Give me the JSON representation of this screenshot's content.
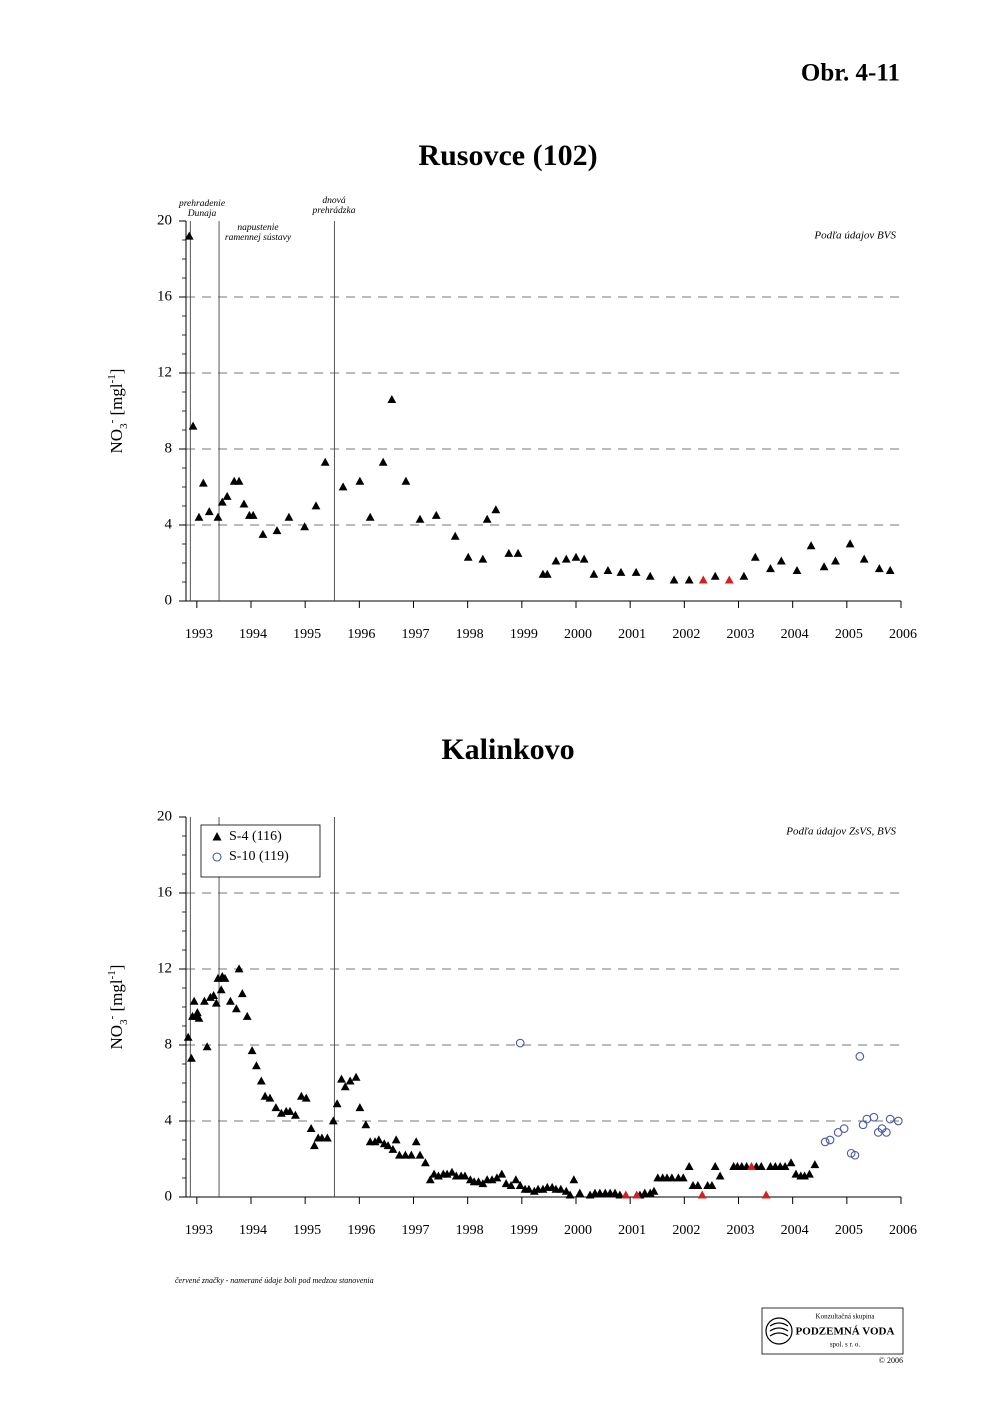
{
  "header": "Obr. 4-11",
  "chart_data": [
    {
      "type": "scatter",
      "title": "Rusovce (102)",
      "source": "Podľa údajov BVS",
      "ylabel": [
        "NO",
        "3",
        "-",
        " [mgl",
        "-1",
        "]"
      ],
      "xlim": [
        1992.8,
        2006
      ],
      "xticks": [
        1993,
        1994,
        1995,
        1996,
        1997,
        1998,
        1999,
        2000,
        2001,
        2002,
        2003,
        2004,
        2005,
        2006
      ],
      "ylim": [
        0,
        20
      ],
      "yticks": [
        0,
        4,
        8,
        12,
        16,
        20
      ],
      "grid": true,
      "vlines": [
        1992.88,
        1993.41,
        1995.54
      ],
      "vline_labels": [
        [
          "prehradenie",
          "Dunaja"
        ],
        [
          "napustenie",
          "ramennej sústavy"
        ],
        [
          "dnová",
          "prehrádzka"
        ]
      ],
      "series": [
        {
          "color": "#000000",
          "marker": "triangle",
          "x": [
            1992.86,
            1992.93,
            1993.04,
            1993.12,
            1993.23,
            1993.39,
            1993.47,
            1993.56,
            1993.69,
            1993.78,
            1993.87,
            1993.97,
            1994.04,
            1994.22,
            1994.48,
            1994.7,
            1994.99,
            1995.2,
            1995.37,
            1995.7,
            1996.01,
            1996.2,
            1996.44,
            1996.6,
            1996.86,
            1997.12,
            1997.42,
            1997.77,
            1998.01,
            1998.28,
            1998.36,
            1998.52,
            1998.76,
            1998.93,
            1999.39,
            1999.47,
            1999.63,
            1999.82,
            2000,
            2000.15,
            2000.33,
            2000.59,
            2000.83,
            2001.11,
            2001.37,
            2001.81,
            2002.09,
            2002.57,
            2003.1,
            2003.31,
            2003.59,
            2003.79,
            2004.08,
            2004.34,
            2004.58,
            2004.79,
            2005.06,
            2005.32,
            2005.6,
            2005.8
          ],
          "values": [
            19.2,
            9.2,
            4.4,
            6.2,
            4.7,
            4.4,
            5.2,
            5.5,
            6.3,
            6.3,
            5.1,
            4.5,
            4.5,
            3.5,
            3.7,
            4.4,
            3.9,
            5.0,
            7.3,
            6.0,
            6.3,
            4.4,
            7.3,
            10.6,
            6.3,
            4.3,
            4.5,
            3.4,
            2.3,
            2.2,
            4.3,
            4.8,
            2.5,
            2.5,
            1.4,
            1.4,
            2.1,
            2.2,
            2.3,
            2.2,
            1.4,
            1.6,
            1.5,
            1.5,
            1.3,
            1.1,
            1.1,
            1.3,
            1.3,
            2.3,
            1.7,
            2.1,
            1.6,
            2.9,
            1.8,
            2.1,
            3.0,
            2.2,
            1.7,
            1.6
          ]
        },
        {
          "color": "#d42020",
          "marker": "triangle",
          "x": [
            2002.35,
            2002.83
          ],
          "values": [
            1.1,
            1.1
          ]
        }
      ]
    },
    {
      "type": "scatter",
      "title": "Kalinkovo",
      "source": "Podľa údajov ZsVS, BVS",
      "ylabel": [
        "NO",
        "3",
        "-",
        " [mgl",
        "-1",
        "]"
      ],
      "xlim": [
        1992.8,
        2006
      ],
      "xticks": [
        1993,
        1994,
        1995,
        1996,
        1997,
        1998,
        1999,
        2000,
        2001,
        2002,
        2003,
        2004,
        2005,
        2006
      ],
      "ylim": [
        0,
        20
      ],
      "yticks": [
        0,
        4,
        8,
        12,
        16,
        20
      ],
      "grid": true,
      "vlines": [
        1992.88,
        1993.41,
        1995.54
      ],
      "legend": "upper left",
      "series": [
        {
          "name": "S-4 (116)",
          "color": "#000000",
          "marker": "triangle",
          "x": [
            1992.84,
            1992.9,
            1992.92,
            1992.95,
            1992.99,
            1993.01,
            1993.04,
            1993.14,
            1993.19,
            1993.25,
            1993.31,
            1993.36,
            1993.39,
            1993.45,
            1993.47,
            1993.52,
            1993.62,
            1993.73,
            1993.78,
            1993.84,
            1993.93,
            1994.02,
            1994.1,
            1994.19,
            1994.26,
            1994.35,
            1994.46,
            1994.56,
            1994.65,
            1994.72,
            1994.82,
            1994.93,
            1995.02,
            1995.11,
            1995.17,
            1995.24,
            1995.31,
            1995.41,
            1995.52,
            1995.59,
            1995.67,
            1995.74,
            1995.83,
            1995.94,
            1996.01,
            1996.12,
            1996.2,
            1996.29,
            1996.36,
            1996.46,
            1996.53,
            1996.62,
            1996.68,
            1996.74,
            1996.85,
            1996.96,
            1997.05,
            1997.12,
            1997.22,
            1997.31,
            1997.38,
            1997.46,
            1997.55,
            1997.62,
            1997.71,
            1997.79,
            1997.88,
            1997.95,
            1998.05,
            1998.12,
            1998.2,
            1998.28,
            1998.36,
            1998.45,
            1998.54,
            1998.63,
            1998.71,
            1998.8,
            1998.89,
            1998.97,
            1999.06,
            1999.13,
            1999.23,
            1999.3,
            1999.39,
            1999.47,
            1999.56,
            1999.63,
            1999.72,
            1999.82,
            1999.89,
            1999.96,
            2000.07,
            2000.26,
            2000.35,
            2000.44,
            2000.54,
            2000.63,
            2000.72,
            2000.81,
            2001.18,
            2001.27,
            2001.37,
            2001.44,
            2001.51,
            2001.6,
            2001.68,
            2001.77,
            2001.89,
            2001.98,
            2002.09,
            2002.16,
            2002.25,
            2002.43,
            2002.51,
            2002.57,
            2002.66,
            2002.91,
            2002.98,
            2003.06,
            2003.15,
            2003.33,
            2003.42,
            2003.59,
            2003.68,
            2003.77,
            2003.86,
            2003.97,
            2004.06,
            2004.15,
            2004.22,
            2004.31,
            2004.41
          ],
          "values": [
            8.4,
            7.3,
            9.5,
            10.3,
            9.5,
            9.7,
            9.4,
            10.3,
            7.9,
            10.5,
            10.6,
            10.2,
            11.5,
            10.9,
            11.6,
            11.5,
            10.3,
            9.9,
            12.0,
            10.7,
            9.5,
            7.7,
            6.9,
            6.1,
            5.3,
            5.2,
            4.7,
            4.4,
            4.5,
            4.5,
            4.3,
            5.3,
            5.2,
            3.6,
            2.7,
            3.1,
            3.1,
            3.1,
            4.0,
            4.9,
            6.2,
            5.8,
            6.1,
            6.3,
            4.7,
            3.8,
            2.9,
            2.9,
            3.0,
            2.8,
            2.7,
            2.5,
            3.0,
            2.2,
            2.2,
            2.2,
            2.9,
            2.2,
            1.8,
            0.9,
            1.2,
            1.1,
            1.2,
            1.2,
            1.3,
            1.1,
            1.1,
            1.1,
            0.9,
            0.8,
            0.8,
            0.7,
            0.9,
            0.9,
            1.0,
            1.2,
            0.7,
            0.6,
            0.9,
            0.6,
            0.4,
            0.4,
            0.3,
            0.4,
            0.4,
            0.5,
            0.5,
            0.4,
            0.4,
            0.3,
            0.1,
            0.9,
            0.2,
            0.1,
            0.2,
            0.2,
            0.2,
            0.2,
            0.2,
            0.1,
            0.1,
            0.2,
            0.2,
            0.3,
            1.0,
            1.0,
            1.0,
            1.0,
            1.0,
            1.0,
            1.6,
            0.6,
            0.6,
            0.6,
            0.6,
            1.6,
            1.1,
            1.6,
            1.6,
            1.6,
            1.6,
            1.6,
            1.6,
            1.6,
            1.6,
            1.6,
            1.6,
            1.8,
            1.2,
            1.1,
            1.1,
            1.2,
            1.7
          ]
        },
        {
          "name": "S-10 (119)",
          "color": "#4a58a8",
          "marker": "circle",
          "x": [
            1998.97,
            2004.6,
            2004.69,
            2004.84,
            2004.95,
            2005.08,
            2005.15,
            2005.24,
            2005.3,
            2005.37,
            2005.5,
            2005.58,
            2005.65,
            2005.73,
            2005.8,
            2005.95
          ],
          "values": [
            8.1,
            2.9,
            3.0,
            3.4,
            3.6,
            2.3,
            2.2,
            7.4,
            3.8,
            4.1,
            4.2,
            3.4,
            3.6,
            3.4,
            4.1,
            4.0
          ]
        },
        {
          "color": "#d42020",
          "marker": "triangle",
          "x": [
            2000.92,
            2001.12,
            2002.33,
            2003.24,
            2003.51
          ],
          "values": [
            0.1,
            0.1,
            0.1,
            1.6,
            0.1
          ]
        }
      ]
    }
  ],
  "footnote": "červené značky - namerané údaje boli pod medzou stanovenia",
  "logo": {
    "line1": "Konzultačná skupina",
    "line2": "PODZEMNÁ VODA",
    "line3": "spol. s r. o.",
    "copyright": "© 2006"
  }
}
